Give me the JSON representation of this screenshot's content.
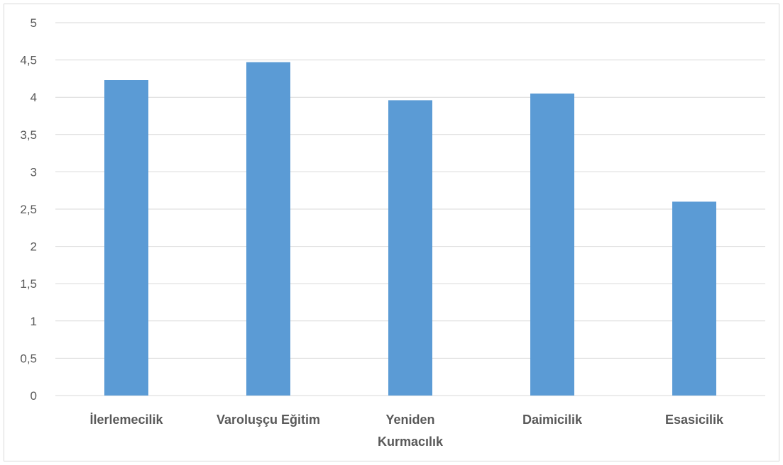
{
  "chart_data": {
    "type": "bar",
    "categories": [
      "İlerlemecilik",
      "Varoluşçu Eğitim",
      "Yeniden Kurmacılık",
      "Daimicilik",
      "Esasicilik"
    ],
    "category_lines": [
      [
        "İlerlemecilik"
      ],
      [
        "Varoluşçu Eğitim"
      ],
      [
        "Yeniden",
        "Kurmacılık"
      ],
      [
        "Daimicilik"
      ],
      [
        "Esasicilik"
      ]
    ],
    "values": [
      4.23,
      4.47,
      3.96,
      4.05,
      2.6
    ],
    "yticks": [
      "0",
      "0,5",
      "1",
      "1,5",
      "2",
      "2,5",
      "3",
      "3,5",
      "4",
      "4,5",
      "5"
    ],
    "ylim": [
      0,
      5
    ],
    "grid": true,
    "legend": "none",
    "bar_color": "#5b9bd5",
    "grid_color": "#d9d9d9",
    "text_color": "#595959"
  }
}
